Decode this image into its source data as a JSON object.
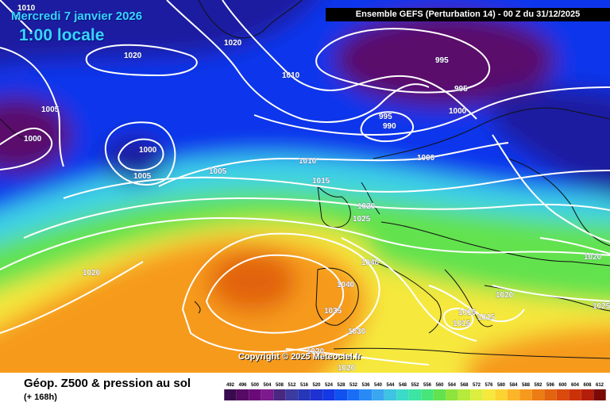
{
  "header": {
    "date": "Mercredi 7 janvier 2026",
    "local_time": "1:00 locale",
    "run_info": "Ensemble GEFS  (Perturbation 14)  - 00 Z du 31/12/2025"
  },
  "copyright": "Copyright © 2025 Meteociel.fr",
  "footer": {
    "title": "Géop. Z500 & pression au sol",
    "subtitle": "(+ 168h)"
  },
  "legend": {
    "values": [
      "492",
      "496",
      "500",
      "504",
      "508",
      "512",
      "516",
      "520",
      "524",
      "528",
      "532",
      "536",
      "540",
      "544",
      "548",
      "552",
      "556",
      "560",
      "564",
      "568",
      "572",
      "576",
      "580",
      "584",
      "588",
      "592",
      "596",
      "600",
      "604",
      "608",
      "612"
    ],
    "colors": [
      "#3a0a4e",
      "#560a63",
      "#6a0a78",
      "#7d1a8e",
      "#4a2882",
      "#3c3ca0",
      "#2836b9",
      "#1e32d2",
      "#1438e4",
      "#0f52f0",
      "#1a6ef5",
      "#2a8af5",
      "#3aa6f0",
      "#3ec3e2",
      "#3cdbc8",
      "#3ce5a4",
      "#46e67a",
      "#62e24e",
      "#8ee43c",
      "#b6ea3c",
      "#dcee3e",
      "#f6e83c",
      "#fcd432",
      "#fcb428",
      "#f69a1e",
      "#ec7c14",
      "#e26410",
      "#da4a0c",
      "#cc3208",
      "#b41e08",
      "#7a0a06"
    ]
  },
  "map": {
    "colors": {
      "deep_purple": "#5a0c6a",
      "dark_blue": "#1a1aa0",
      "blue": "#1034ec",
      "cyan": "#3cd2e6",
      "green": "#62e24e",
      "yellow": "#f6e83c",
      "orange": "#f69a1e",
      "core": "#e26410"
    },
    "isobar_labels": [
      "1010",
      "1020",
      "1020",
      "1010",
      "995",
      "995",
      "1005",
      "1000",
      "1000",
      "1000",
      "995",
      "990",
      "1005",
      "1005",
      "1000",
      "1010",
      "1015",
      "1020",
      "1025",
      "1020",
      "1040",
      "1020",
      "1040",
      "1035",
      "1030",
      "1020",
      "1020",
      "1015",
      "1015",
      "1015",
      "1020",
      "1025"
    ]
  }
}
